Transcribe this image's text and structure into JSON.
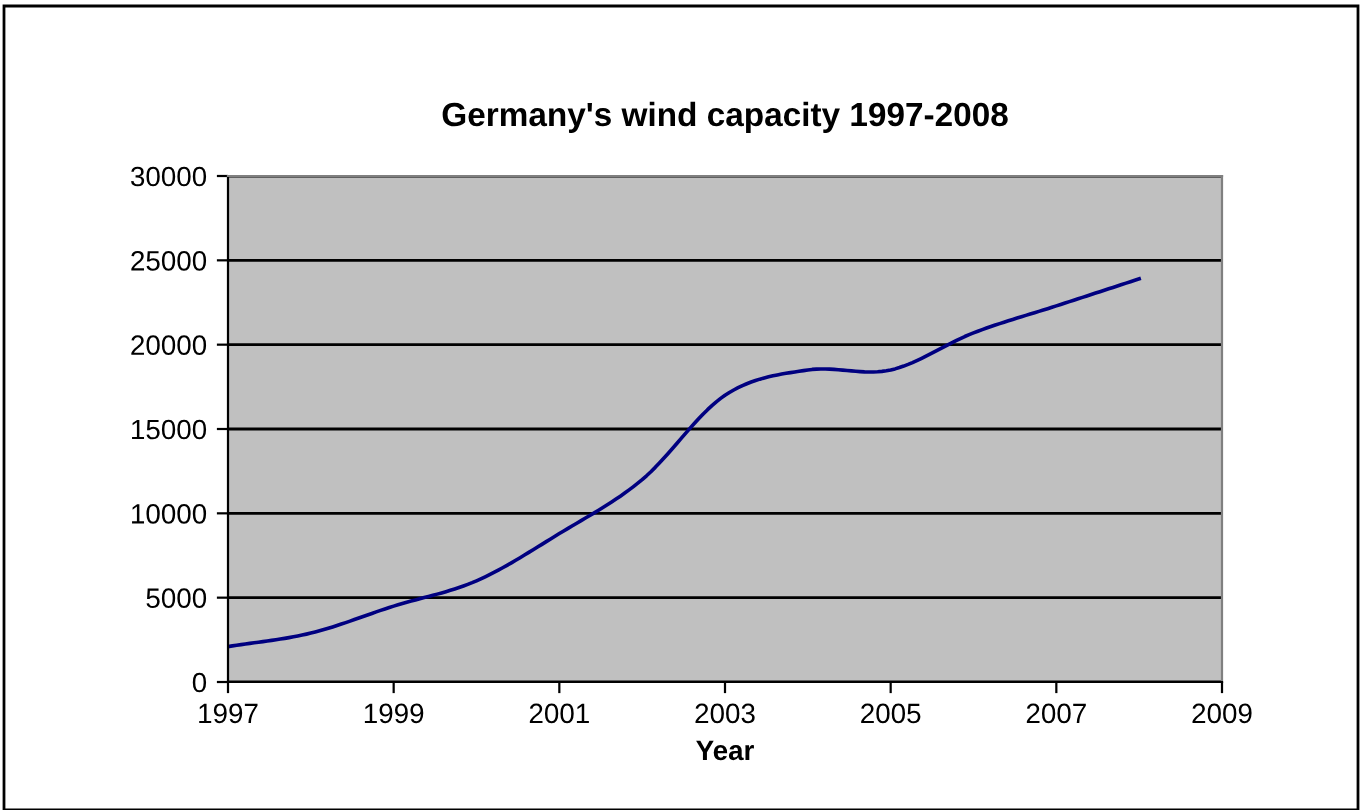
{
  "chart_data": {
    "type": "line",
    "title": "Germany's wind capacity 1997-2008",
    "xlabel": "Year",
    "x": [
      1997,
      1998,
      1999,
      2000,
      2001,
      2002,
      2003,
      2004,
      2005,
      2006,
      2007,
      2008
    ],
    "series": [
      {
        "color": "#000080",
        "values": [
          2100,
          2900,
          4500,
          6000,
          8800,
          12000,
          17000,
          18500,
          18500,
          20700,
          22300,
          23900
        ]
      }
    ],
    "xlim": [
      1997,
      2009
    ],
    "xticks": [
      1997,
      1999,
      2001,
      2003,
      2005,
      2007,
      2009
    ],
    "ylim": [
      0,
      30000
    ],
    "yticks": [
      0,
      5000,
      10000,
      15000,
      20000,
      25000,
      30000
    ],
    "grid": "y",
    "marker": "none",
    "line_style": "solid"
  }
}
